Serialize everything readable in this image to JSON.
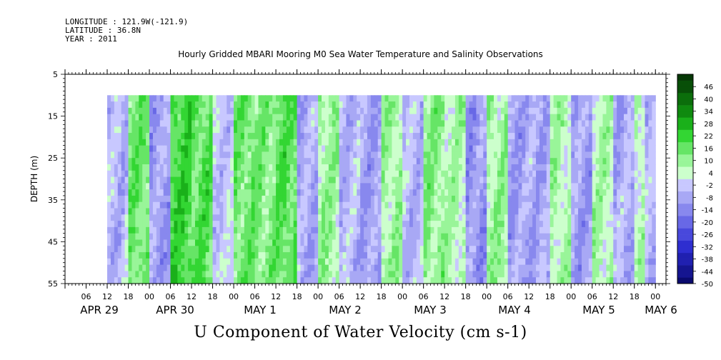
{
  "header": {
    "longitude": "LONGITUDE : 121.9W(-121.9)",
    "latitude": "LATITUDE : 36.8N",
    "year": "YEAR : 2011"
  },
  "chart_data": {
    "type": "heatmap",
    "title": "Hourly Gridded MBARI Mooring M0 Sea Water Temperature and Salinity Observations",
    "caption": "U Component of Water Velocity (cm s-1)",
    "ylabel": "DEPTH (m)",
    "y_ticks": [
      5,
      15,
      25,
      35,
      45,
      55
    ],
    "ylim": [
      5,
      55
    ],
    "y_inverted": true,
    "data_depth_range": [
      10,
      55
    ],
    "x_start": "2011-04-29 00:00",
    "x_end": "2011-05-06 03:00",
    "data_time_range": [
      "2011-04-29 12:00",
      "2011-05-06 00:00"
    ],
    "x_hour_labels": [
      "06",
      "12",
      "18",
      "00",
      "06",
      "12",
      "18",
      "00",
      "06",
      "12",
      "18",
      "00",
      "06",
      "12",
      "18",
      "00",
      "06",
      "12",
      "18",
      "00",
      "06",
      "12",
      "18",
      "00",
      "06",
      "12",
      "18",
      "00"
    ],
    "x_day_labels": [
      "APR 29",
      "APR 30",
      "MAY 1",
      "MAY 2",
      "MAY 3",
      "MAY 4",
      "MAY 5",
      "MAY 6"
    ],
    "colorbar": {
      "labels": [
        "46",
        "40",
        "34",
        "28",
        "22",
        "16",
        "10",
        "4",
        "-2",
        "-8",
        "-14",
        "-20",
        "-26",
        "-32",
        "-38",
        "-44",
        "-50"
      ],
      "range": [
        -50,
        52
      ],
      "positive_colors": [
        "#ccffcc",
        "#99f599",
        "#66e566",
        "#33d633",
        "#1ab01a",
        "#0f8a0f",
        "#0b6e0b",
        "#084f08",
        "#063806"
      ],
      "negative_colors": [
        "#c8c8ff",
        "#a8a8f5",
        "#8888ee",
        "#6868e6",
        "#4848dc",
        "#2e2ed0",
        "#2020b0",
        "#151590",
        "#0a0a6e",
        "#050550"
      ]
    },
    "dominant_columns": [
      {
        "start": "2011-04-29 12:00",
        "sign": "negative",
        "magnitude": 6
      },
      {
        "start": "2011-04-29 18:00",
        "sign": "positive",
        "magnitude": 14
      },
      {
        "start": "2011-04-30 00:00",
        "sign": "negative",
        "magnitude": 10
      },
      {
        "start": "2011-04-30 06:00",
        "sign": "positive",
        "magnitude": 20
      },
      {
        "start": "2011-04-30 12:00",
        "sign": "positive",
        "magnitude": 16
      },
      {
        "start": "2011-04-30 18:00",
        "sign": "negative",
        "magnitude": 4
      },
      {
        "start": "2011-05-01 00:00",
        "sign": "positive",
        "magnitude": 14
      },
      {
        "start": "2011-05-01 06:00",
        "sign": "positive",
        "magnitude": 12
      },
      {
        "start": "2011-05-01 12:00",
        "sign": "positive",
        "magnitude": 16
      },
      {
        "start": "2011-05-01 18:00",
        "sign": "negative",
        "magnitude": 8
      },
      {
        "start": "2011-05-02 00:00",
        "sign": "positive",
        "magnitude": 8
      },
      {
        "start": "2011-05-02 06:00",
        "sign": "negative",
        "magnitude": 6
      },
      {
        "start": "2011-05-02 12:00",
        "sign": "negative",
        "magnitude": 10
      },
      {
        "start": "2011-05-02 18:00",
        "sign": "positive",
        "magnitude": 8
      },
      {
        "start": "2011-05-03 00:00",
        "sign": "negative",
        "magnitude": 6
      },
      {
        "start": "2011-05-03 06:00",
        "sign": "positive",
        "magnitude": 10
      },
      {
        "start": "2011-05-03 12:00",
        "sign": "positive",
        "magnitude": 6
      },
      {
        "start": "2011-05-03 18:00",
        "sign": "negative",
        "magnitude": 12
      },
      {
        "start": "2011-05-04 00:00",
        "sign": "positive",
        "magnitude": 8
      },
      {
        "start": "2011-05-04 06:00",
        "sign": "negative",
        "magnitude": 10
      },
      {
        "start": "2011-05-04 12:00",
        "sign": "negative",
        "magnitude": 8
      },
      {
        "start": "2011-05-04 18:00",
        "sign": "positive",
        "magnitude": 6
      },
      {
        "start": "2011-05-05 00:00",
        "sign": "negative",
        "magnitude": 10
      },
      {
        "start": "2011-05-05 06:00",
        "sign": "positive",
        "magnitude": 6
      },
      {
        "start": "2011-05-05 12:00",
        "sign": "negative",
        "magnitude": 8
      },
      {
        "start": "2011-05-05 18:00",
        "sign": "positive",
        "magnitude": 4
      },
      {
        "start": "2011-05-05 21:00",
        "sign": "negative",
        "magnitude": 6
      }
    ]
  }
}
